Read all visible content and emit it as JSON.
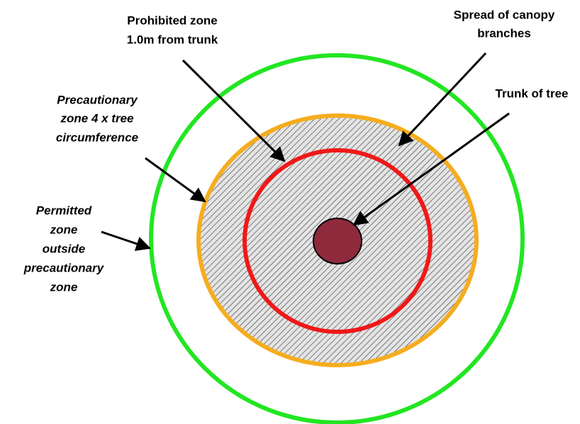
{
  "labels": {
    "prohibited": [
      "Prohibited zone",
      "1.0m from trunk"
    ],
    "canopy": [
      "Spread of canopy",
      "branches"
    ],
    "trunk": [
      "Trunk of tree"
    ],
    "precautionary": [
      "Precautionary",
      "zone 4 x tree",
      "circumference"
    ],
    "permitted": [
      "Permitted",
      "zone",
      "outside",
      "precautionary",
      "zone"
    ]
  }
}
